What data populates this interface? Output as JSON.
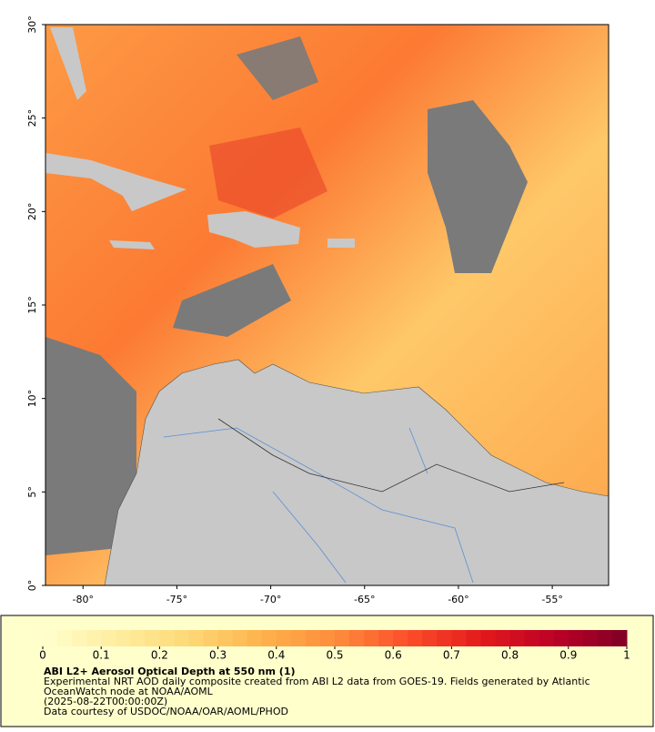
{
  "map": {
    "xlim": [
      -82,
      -52
    ],
    "ylim": [
      0,
      30
    ],
    "yticks": [
      {
        "value": 0,
        "label": "0°"
      },
      {
        "value": 5,
        "label": "5°"
      },
      {
        "value": 10,
        "label": "10°"
      },
      {
        "value": 15,
        "label": "15°"
      },
      {
        "value": 20,
        "label": "20°"
      },
      {
        "value": 25,
        "label": "25°"
      },
      {
        "value": 30,
        "label": "30°"
      }
    ],
    "xticks": [
      {
        "value": -80,
        "label": "-80°"
      },
      {
        "value": -75,
        "label": "-75°"
      },
      {
        "value": -70,
        "label": "-70°"
      },
      {
        "value": -65,
        "label": "-65°"
      },
      {
        "value": -60,
        "label": "-60°"
      },
      {
        "value": -55,
        "label": "-55°"
      }
    ],
    "colorbar": {
      "clim": [
        0,
        1
      ],
      "ticks": [
        0,
        0.1,
        0.2,
        0.3,
        0.4,
        0.5,
        0.6,
        0.7,
        0.8,
        0.9,
        1
      ],
      "colors": [
        "#ffffcc",
        "#ffeda0",
        "#fed976",
        "#feb24c",
        "#fd8d3c",
        "#fc4e2a",
        "#e31a1c",
        "#bd0026",
        "#800026"
      ]
    },
    "title": "ABI L2+ Aerosol Optical Depth at 550 nm (1)",
    "description": [
      "Experimental NRT AOD daily composite created from ABI L2 data from GOES-19. Fields generated by Atlantic",
      "OceanWatch node at NOAA/AOML",
      "(2025-08-22T00:00:00Z)",
      "Data courtesy of USDOC/NOAA/OAR/AOML/PHOD"
    ]
  }
}
